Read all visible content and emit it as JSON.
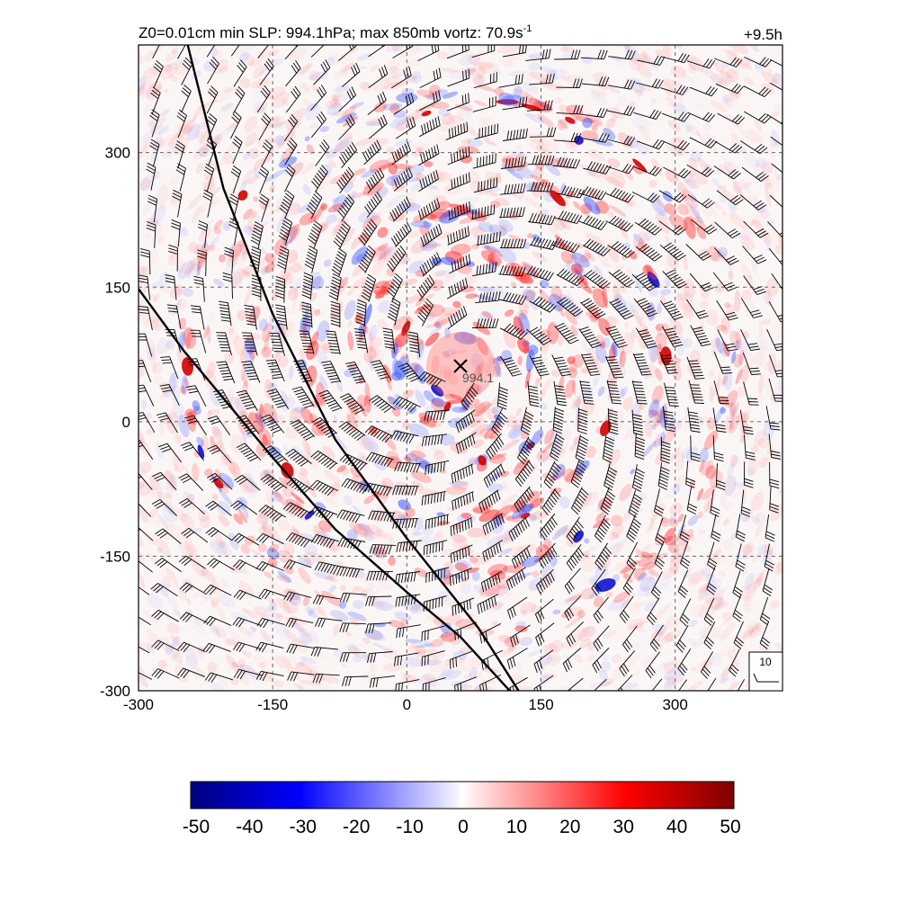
{
  "header": {
    "title_main": "Z0=0.01cm  min SLP: 994.1hPa; max 850mb vortz:  70.9s",
    "title_sup": "-1",
    "time_label": "+9.5h"
  },
  "chart_data": {
    "type": "heatmap",
    "field": "850mb relative vorticity with wind barbs",
    "x_range": [
      -300,
      420
    ],
    "y_range": [
      -300,
      420
    ],
    "x_ticks": [
      -300,
      -150,
      0,
      150,
      300
    ],
    "y_ticks": [
      -300,
      -150,
      0,
      150,
      300
    ],
    "grid": true,
    "grid_style": "dashed",
    "center": {
      "x": 60,
      "y": 62,
      "label": "994.1",
      "marker": "x"
    },
    "front_lines": [
      {
        "points": [
          [
            -245,
            420
          ],
          [
            -205,
            260
          ],
          [
            -150,
            120
          ],
          [
            -80,
            -20
          ],
          [
            0,
            -130
          ],
          [
            80,
            -230
          ],
          [
            125,
            -300
          ]
        ]
      },
      {
        "points": [
          [
            -300,
            148
          ],
          [
            -250,
            80
          ],
          [
            -200,
            20
          ],
          [
            -150,
            -40
          ],
          [
            -80,
            -120
          ],
          [
            0,
            -190
          ],
          [
            60,
            -240
          ],
          [
            115,
            -300
          ]
        ]
      }
    ],
    "barb_reference": {
      "label": "10",
      "value": 10
    },
    "colorbar": {
      "min": -50,
      "max": 50,
      "ticks": [
        "-50",
        "-40",
        "-30",
        "-20",
        "-10",
        "0",
        "10",
        "20",
        "30",
        "40",
        "50"
      ],
      "colors": [
        "#00007f",
        "#0000ff",
        "#f4f4ff",
        "#ffffff",
        "#fff4f4",
        "#ff0000",
        "#7f0000"
      ]
    }
  }
}
